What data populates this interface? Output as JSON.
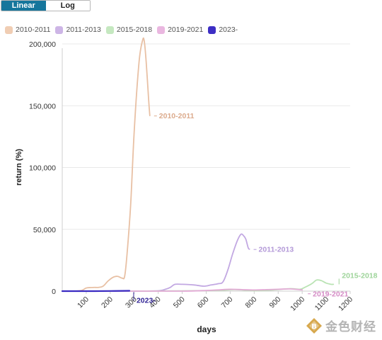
{
  "controls": {
    "linear_label": "Linear",
    "log_label": "Log",
    "active": "Linear"
  },
  "legend": [
    {
      "label": "2010-2011",
      "color": "#f0cdb3"
    },
    {
      "label": "2011-2013",
      "color": "#cdb5e6"
    },
    {
      "label": "2015-2018",
      "color": "#c5e8c0"
    },
    {
      "label": "2019-2021",
      "color": "#eab7e0"
    },
    {
      "label": "2023-",
      "color": "#3d2ec4"
    }
  ],
  "watermark": {
    "text": "金色财经",
    "icon": "jinse-logo-icon"
  },
  "chart_data": {
    "type": "line",
    "xlabel": "days",
    "ylabel": "return (%)",
    "xlim": [
      0,
      1200
    ],
    "ylim": [
      0,
      200000
    ],
    "x_ticks": [
      100,
      200,
      300,
      400,
      500,
      600,
      700,
      800,
      900,
      1000,
      1100,
      1200
    ],
    "y_ticks": [
      0,
      50000,
      100000,
      150000,
      200000
    ],
    "y_tick_labels": [
      "0",
      "50,000",
      "100,000",
      "150,000",
      "200,000"
    ],
    "grid": "horizontal",
    "legend_position": "top",
    "series": [
      {
        "name": "2010-2011",
        "color": "#e8c0a4",
        "label_color": "#dcab8d",
        "end_label": "2010-2011",
        "points": [
          [
            0,
            0
          ],
          [
            40,
            0
          ],
          [
            80,
            500
          ],
          [
            100,
            2500
          ],
          [
            130,
            3000
          ],
          [
            150,
            3000
          ],
          [
            170,
            4000
          ],
          [
            190,
            8000
          ],
          [
            210,
            11000
          ],
          [
            230,
            12000
          ],
          [
            250,
            10500
          ],
          [
            260,
            12000
          ],
          [
            270,
            30000
          ],
          [
            285,
            70000
          ],
          [
            300,
            130000
          ],
          [
            320,
            185000
          ],
          [
            335,
            203000
          ],
          [
            342,
            202000
          ],
          [
            350,
            185000
          ],
          [
            360,
            155000
          ],
          [
            365,
            142000
          ]
        ]
      },
      {
        "name": "2011-2013",
        "color": "#c2a8e2",
        "label_color": "#b399d8",
        "end_label": "2011-2013",
        "points": [
          [
            0,
            0
          ],
          [
            300,
            0
          ],
          [
            400,
            300
          ],
          [
            430,
            1500
          ],
          [
            450,
            3000
          ],
          [
            470,
            5500
          ],
          [
            500,
            5500
          ],
          [
            550,
            5000
          ],
          [
            590,
            4000
          ],
          [
            620,
            5000
          ],
          [
            650,
            6000
          ],
          [
            670,
            7500
          ],
          [
            690,
            17000
          ],
          [
            710,
            30000
          ],
          [
            730,
            41000
          ],
          [
            745,
            46000
          ],
          [
            755,
            45000
          ],
          [
            765,
            42000
          ],
          [
            775,
            35000
          ],
          [
            780,
            34000
          ]
        ]
      },
      {
        "name": "2015-2018",
        "color": "#b9e3b3",
        "label_color": "#9ed49a",
        "end_label": "2015-2018",
        "points": [
          [
            0,
            0
          ],
          [
            300,
            0
          ],
          [
            500,
            200
          ],
          [
            650,
            600
          ],
          [
            720,
            1200
          ],
          [
            800,
            400
          ],
          [
            880,
            1000
          ],
          [
            950,
            2000
          ],
          [
            990,
            1500
          ],
          [
            1010,
            3000
          ],
          [
            1040,
            6000
          ],
          [
            1060,
            9000
          ],
          [
            1080,
            8500
          ],
          [
            1100,
            6500
          ],
          [
            1120,
            5500
          ],
          [
            1130,
            5500
          ]
        ]
      },
      {
        "name": "2019-2021",
        "color": "#e3aad6",
        "label_color": "#d58cc6",
        "end_label": "2019-2021",
        "points": [
          [
            0,
            0
          ],
          [
            300,
            0
          ],
          [
            500,
            0
          ],
          [
            600,
            500
          ],
          [
            650,
            1000
          ],
          [
            700,
            1500
          ],
          [
            750,
            1200
          ],
          [
            800,
            900
          ],
          [
            850,
            1200
          ],
          [
            900,
            1500
          ],
          [
            950,
            1800
          ],
          [
            1000,
            1000
          ]
        ]
      },
      {
        "name": "2023-",
        "color": "#3a2bc2",
        "label_color": "#322596",
        "end_label": "2023-",
        "points": [
          [
            0,
            0
          ],
          [
            100,
            0
          ],
          [
            200,
            100
          ],
          [
            280,
            300
          ]
        ]
      }
    ]
  }
}
